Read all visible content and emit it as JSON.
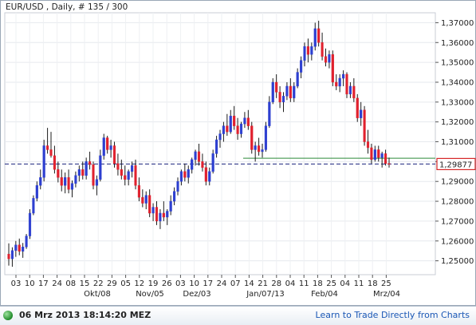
{
  "header": {
    "title": "EUR/USD , Daily, # 135 / 300"
  },
  "price_tag": "1,29877",
  "footer": {
    "timestamp": "06 Mrz 2013 18:14:20 MEZ",
    "link": "Learn to Trade Directly from Charts",
    "status_color": "#2ca02c"
  },
  "colors": {
    "up": "#2d3fd0",
    "down": "#e0212e",
    "current_line": "#1a237e",
    "support_line": "#2e8b3a",
    "price_tag_border": "#d62728"
  },
  "chart_data": {
    "type": "candlestick",
    "title": "EUR/USD , Daily, # 135 / 300",
    "ylim": [
      1.243,
      1.375
    ],
    "y_ticks": [
      "1,25000",
      "1,26000",
      "1,27000",
      "1,28000",
      "1,29000",
      "1,30000",
      "1,31000",
      "1,32000",
      "1,33000",
      "1,34000",
      "1,35000",
      "1,36000",
      "1,37000"
    ],
    "x_ticks": [
      "03",
      "10",
      "17",
      "24",
      "08",
      "15",
      "22",
      "29",
      "05",
      "12",
      "19",
      "26",
      "03",
      "10",
      "17",
      "24",
      "07",
      "14",
      "21",
      "28",
      "04",
      "11",
      "18",
      "25",
      "04",
      "11",
      "18",
      "25"
    ],
    "month_labels": [
      "Okt/08",
      "Nov/05",
      "Dez/03",
      "Jan/07/13",
      "Feb/04",
      "Mrz/04"
    ],
    "grid": true,
    "current_price": 1.29877,
    "support_level": 1.3017,
    "candles": [
      [
        1.2534,
        1.2588,
        1.2476,
        1.251
      ],
      [
        1.251,
        1.2568,
        1.247,
        1.2552
      ],
      [
        1.2552,
        1.26,
        1.252,
        1.258
      ],
      [
        1.258,
        1.2612,
        1.2528,
        1.2548
      ],
      [
        1.2548,
        1.259,
        1.2515,
        1.257
      ],
      [
        1.257,
        1.2635,
        1.256,
        1.2625
      ],
      [
        1.2625,
        1.276,
        1.261,
        1.274
      ],
      [
        1.274,
        1.283,
        1.273,
        1.2815
      ],
      [
        1.2815,
        1.29,
        1.28,
        1.288
      ],
      [
        1.288,
        1.296,
        1.286,
        1.292
      ],
      [
        1.292,
        1.311,
        1.29,
        1.308
      ],
      [
        1.308,
        1.317,
        1.304,
        1.306
      ],
      [
        1.306,
        1.315,
        1.302,
        1.303
      ],
      [
        1.303,
        1.308,
        1.294,
        1.296
      ],
      [
        1.296,
        1.3,
        1.2895,
        1.292
      ],
      [
        1.292,
        1.296,
        1.285,
        1.288
      ],
      [
        1.288,
        1.2945,
        1.284,
        1.292
      ],
      [
        1.292,
        1.296,
        1.284,
        1.286
      ],
      [
        1.286,
        1.2905,
        1.282,
        1.289
      ],
      [
        1.289,
        1.295,
        1.287,
        1.293
      ],
      [
        1.293,
        1.298,
        1.29,
        1.296
      ],
      [
        1.296,
        1.3,
        1.291,
        1.293
      ],
      [
        1.293,
        1.302,
        1.291,
        1.3
      ],
      [
        1.3,
        1.305,
        1.296,
        1.2985
      ],
      [
        1.2985,
        1.3,
        1.286,
        1.288
      ],
      [
        1.288,
        1.293,
        1.283,
        1.291
      ],
      [
        1.291,
        1.306,
        1.29,
        1.303
      ],
      [
        1.303,
        1.314,
        1.301,
        1.312
      ],
      [
        1.312,
        1.313,
        1.304,
        1.306
      ],
      [
        1.306,
        1.311,
        1.302,
        1.308
      ],
      [
        1.308,
        1.31,
        1.297,
        1.299
      ],
      [
        1.299,
        1.304,
        1.293,
        1.296
      ],
      [
        1.296,
        1.301,
        1.291,
        1.293
      ],
      [
        1.293,
        1.298,
        1.288,
        1.291
      ],
      [
        1.291,
        1.296,
        1.288,
        1.295
      ],
      [
        1.295,
        1.3,
        1.292,
        1.298
      ],
      [
        1.298,
        1.301,
        1.286,
        1.288
      ],
      [
        1.288,
        1.292,
        1.28,
        1.282
      ],
      [
        1.282,
        1.286,
        1.277,
        1.279
      ],
      [
        1.279,
        1.285,
        1.276,
        1.283
      ],
      [
        1.283,
        1.286,
        1.272,
        1.274
      ],
      [
        1.274,
        1.279,
        1.27,
        1.277
      ],
      [
        1.277,
        1.28,
        1.268,
        1.27
      ],
      [
        1.27,
        1.276,
        1.266,
        1.274
      ],
      [
        1.274,
        1.28,
        1.27,
        1.272
      ],
      [
        1.272,
        1.276,
        1.268,
        1.275
      ],
      [
        1.275,
        1.283,
        1.273,
        1.28
      ],
      [
        1.28,
        1.287,
        1.278,
        1.285
      ],
      [
        1.285,
        1.292,
        1.283,
        1.29
      ],
      [
        1.29,
        1.296,
        1.288,
        1.295
      ],
      [
        1.295,
        1.299,
        1.29,
        1.292
      ],
      [
        1.292,
        1.298,
        1.289,
        1.296
      ],
      [
        1.296,
        1.302,
        1.294,
        1.301
      ],
      [
        1.301,
        1.306,
        1.298,
        1.305
      ],
      [
        1.305,
        1.309,
        1.298,
        1.3
      ],
      [
        1.3,
        1.304,
        1.295,
        1.297
      ],
      [
        1.297,
        1.3,
        1.288,
        1.29
      ],
      [
        1.29,
        1.297,
        1.288,
        1.295
      ],
      [
        1.295,
        1.306,
        1.294,
        1.304
      ],
      [
        1.304,
        1.313,
        1.302,
        1.311
      ],
      [
        1.311,
        1.316,
        1.307,
        1.314
      ],
      [
        1.314,
        1.32,
        1.31,
        1.318
      ],
      [
        1.318,
        1.324,
        1.313,
        1.315
      ],
      [
        1.315,
        1.326,
        1.314,
        1.323
      ],
      [
        1.323,
        1.328,
        1.316,
        1.318
      ],
      [
        1.318,
        1.322,
        1.311,
        1.314
      ],
      [
        1.314,
        1.32,
        1.312,
        1.319
      ],
      [
        1.319,
        1.325,
        1.317,
        1.322
      ],
      [
        1.322,
        1.326,
        1.316,
        1.318
      ],
      [
        1.318,
        1.32,
        1.304,
        1.306
      ],
      [
        1.306,
        1.31,
        1.3,
        1.308
      ],
      [
        1.308,
        1.312,
        1.303,
        1.305
      ],
      [
        1.305,
        1.309,
        1.302,
        1.306
      ],
      [
        1.306,
        1.32,
        1.305,
        1.318
      ],
      [
        1.318,
        1.333,
        1.317,
        1.33
      ],
      [
        1.33,
        1.342,
        1.329,
        1.34
      ],
      [
        1.34,
        1.344,
        1.332,
        1.335
      ],
      [
        1.335,
        1.338,
        1.327,
        1.33
      ],
      [
        1.33,
        1.335,
        1.325,
        1.333
      ],
      [
        1.333,
        1.34,
        1.331,
        1.338
      ],
      [
        1.338,
        1.342,
        1.33,
        1.332
      ],
      [
        1.332,
        1.34,
        1.33,
        1.338
      ],
      [
        1.338,
        1.347,
        1.337,
        1.345
      ],
      [
        1.345,
        1.353,
        1.342,
        1.351
      ],
      [
        1.351,
        1.36,
        1.348,
        1.358
      ],
      [
        1.358,
        1.362,
        1.35,
        1.354
      ],
      [
        1.354,
        1.36,
        1.351,
        1.358
      ],
      [
        1.358,
        1.37,
        1.356,
        1.367
      ],
      [
        1.367,
        1.371,
        1.358,
        1.36
      ],
      [
        1.36,
        1.365,
        1.351,
        1.353
      ],
      [
        1.353,
        1.357,
        1.348,
        1.35
      ],
      [
        1.35,
        1.356,
        1.347,
        1.354
      ],
      [
        1.354,
        1.356,
        1.338,
        1.34
      ],
      [
        1.34,
        1.344,
        1.336,
        1.338
      ],
      [
        1.338,
        1.344,
        1.335,
        1.342
      ],
      [
        1.342,
        1.346,
        1.338,
        1.344
      ],
      [
        1.344,
        1.345,
        1.332,
        1.334
      ],
      [
        1.334,
        1.34,
        1.332,
        1.338
      ],
      [
        1.338,
        1.342,
        1.33,
        1.332
      ],
      [
        1.332,
        1.334,
        1.32,
        1.322
      ],
      [
        1.322,
        1.33,
        1.318,
        1.326
      ],
      [
        1.326,
        1.328,
        1.308,
        1.31
      ],
      [
        1.31,
        1.316,
        1.304,
        1.307
      ],
      [
        1.307,
        1.309,
        1.299,
        1.301
      ],
      [
        1.301,
        1.308,
        1.3,
        1.306
      ],
      [
        1.306,
        1.308,
        1.3,
        1.302
      ],
      [
        1.302,
        1.305,
        1.297,
        1.304
      ],
      [
        1.304,
        1.306,
        1.298,
        1.299
      ],
      [
        1.299,
        1.302,
        1.297,
        1.2988
      ]
    ]
  }
}
